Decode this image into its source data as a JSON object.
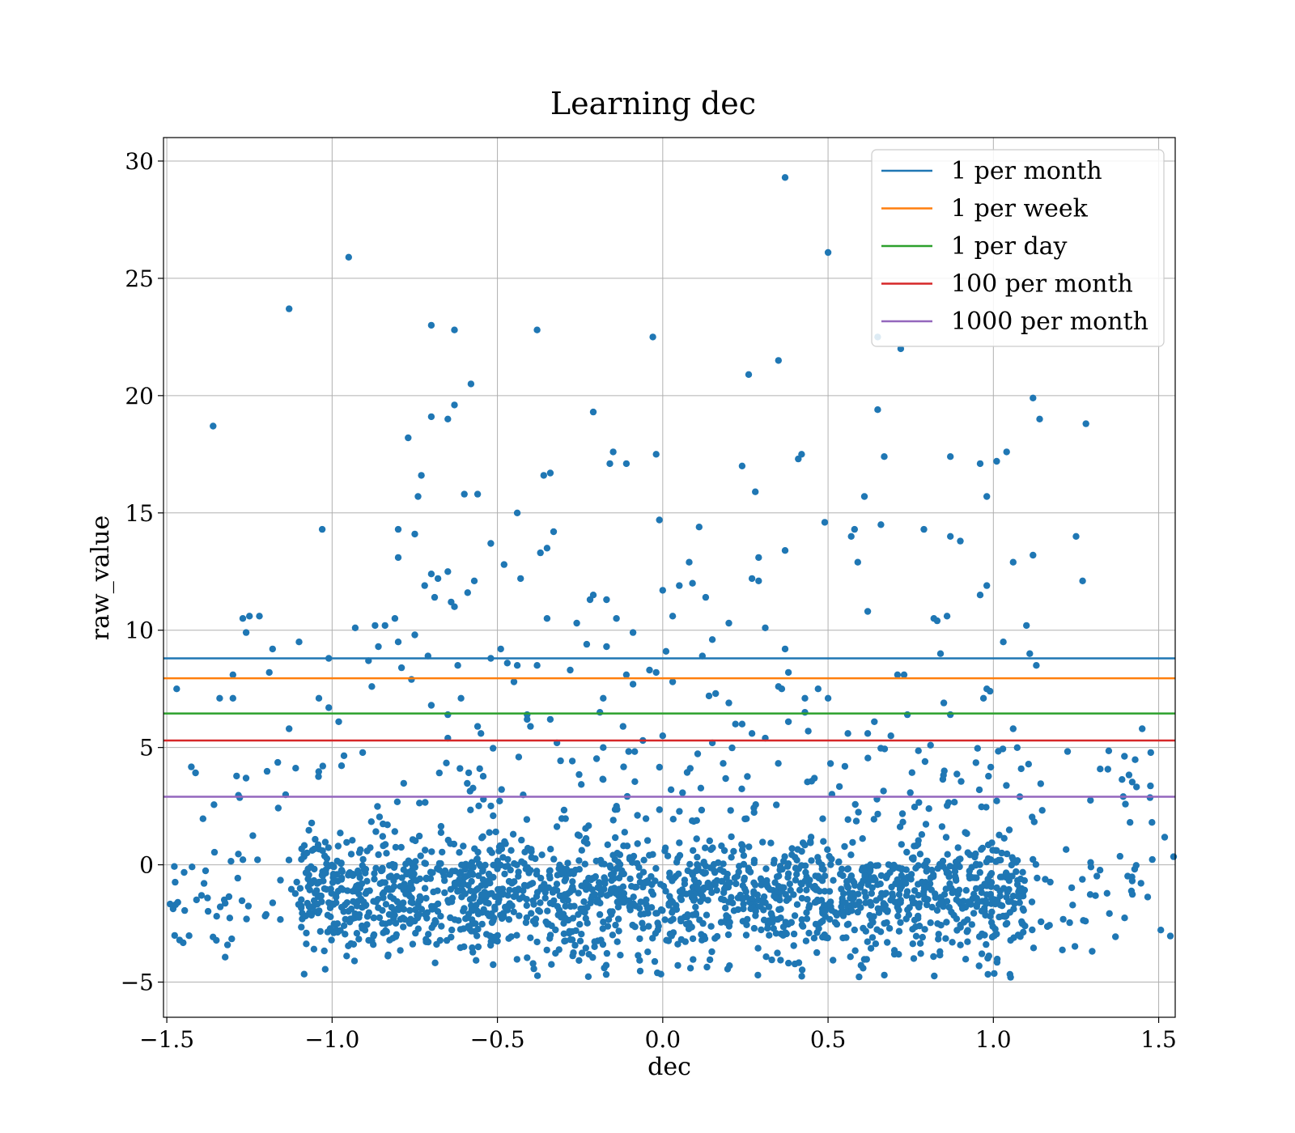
{
  "chart_data": {
    "type": "scatter",
    "title": "Learning dec",
    "xlabel": "dec",
    "ylabel": "raw_value",
    "xlim": [
      -1.51,
      1.55
    ],
    "ylim": [
      -6.5,
      31
    ],
    "xticks": [
      -1.5,
      -1.0,
      -0.5,
      0.0,
      0.5,
      1.0,
      1.5
    ],
    "xtick_labels": [
      "−1.5",
      "−1.0",
      "−0.5",
      "0.0",
      "0.5",
      "1.0",
      "1.5"
    ],
    "yticks": [
      -5,
      0,
      5,
      10,
      15,
      20,
      25,
      30
    ],
    "ytick_labels": [
      "−5",
      "0",
      "5",
      "10",
      "15",
      "20",
      "25",
      "30"
    ],
    "grid": true,
    "legend_position": "top-right",
    "point_color": "#1f77b4",
    "hlines": [
      {
        "name": "1 per month",
        "y": 8.8,
        "color": "#1f77b4"
      },
      {
        "name": "1 per week",
        "y": 7.95,
        "color": "#ff7f0e"
      },
      {
        "name": "1 per day",
        "y": 6.45,
        "color": "#2ca02c"
      },
      {
        "name": "100 per month",
        "y": 5.3,
        "color": "#d62728"
      },
      {
        "name": "1000 per month",
        "y": 2.9,
        "color": "#9467bd"
      }
    ],
    "outliers": [
      [
        0.37,
        29.3
      ],
      [
        -0.95,
        25.9
      ],
      [
        0.5,
        26.1
      ],
      [
        -1.13,
        23.7
      ],
      [
        -0.7,
        23.0
      ],
      [
        -0.63,
        22.8
      ],
      [
        -0.38,
        22.8
      ],
      [
        -0.03,
        22.5
      ],
      [
        0.65,
        22.5
      ],
      [
        0.72,
        22.0
      ],
      [
        0.35,
        21.5
      ],
      [
        0.26,
        20.9
      ],
      [
        -0.58,
        20.5
      ],
      [
        -1.36,
        18.7
      ],
      [
        -0.7,
        19.1
      ],
      [
        -0.65,
        19.0
      ],
      [
        -0.63,
        19.6
      ],
      [
        -0.21,
        19.3
      ],
      [
        0.65,
        19.4
      ],
      [
        1.12,
        19.9
      ],
      [
        1.14,
        19.0
      ],
      [
        1.28,
        18.8
      ],
      [
        -0.77,
        18.2
      ],
      [
        -0.15,
        17.6
      ],
      [
        -0.16,
        17.1
      ],
      [
        -0.11,
        17.1
      ],
      [
        -0.02,
        17.5
      ],
      [
        0.24,
        17.0
      ],
      [
        0.42,
        17.5
      ],
      [
        0.41,
        17.3
      ],
      [
        0.67,
        17.4
      ],
      [
        0.87,
        17.4
      ],
      [
        0.96,
        17.1
      ],
      [
        1.01,
        17.2
      ],
      [
        1.04,
        17.6
      ],
      [
        -0.73,
        16.6
      ],
      [
        -0.36,
        16.6
      ],
      [
        -0.34,
        16.7
      ],
      [
        -0.74,
        15.7
      ],
      [
        -0.6,
        15.8
      ],
      [
        -0.56,
        15.8
      ],
      [
        0.28,
        15.9
      ],
      [
        0.61,
        15.7
      ],
      [
        0.98,
        15.7
      ],
      [
        -1.03,
        14.3
      ],
      [
        -0.8,
        14.3
      ],
      [
        -0.75,
        14.1
      ],
      [
        -0.44,
        15.0
      ],
      [
        -0.33,
        14.2
      ],
      [
        -0.01,
        14.7
      ],
      [
        0.11,
        14.4
      ],
      [
        0.49,
        14.6
      ],
      [
        0.57,
        14.0
      ],
      [
        0.58,
        14.3
      ],
      [
        0.66,
        14.5
      ],
      [
        0.79,
        14.3
      ],
      [
        0.87,
        14.0
      ],
      [
        0.9,
        13.8
      ],
      [
        1.25,
        14.0
      ],
      [
        -0.8,
        13.1
      ],
      [
        -0.52,
        13.7
      ],
      [
        -0.37,
        13.3
      ],
      [
        -0.35,
        13.5
      ],
      [
        0.29,
        13.1
      ],
      [
        0.37,
        13.4
      ],
      [
        1.12,
        13.2
      ],
      [
        -0.48,
        12.8
      ],
      [
        -0.43,
        12.2
      ],
      [
        -0.7,
        12.4
      ],
      [
        -0.68,
        12.2
      ],
      [
        -0.65,
        12.5
      ],
      [
        -0.57,
        12.1
      ],
      [
        0.08,
        12.9
      ],
      [
        0.27,
        12.2
      ],
      [
        0.29,
        12.1
      ],
      [
        0.59,
        12.9
      ],
      [
        1.06,
        12.9
      ],
      [
        1.27,
        12.1
      ],
      [
        -0.72,
        11.9
      ],
      [
        -0.69,
        11.4
      ],
      [
        -0.64,
        11.2
      ],
      [
        -0.63,
        11.0
      ],
      [
        -0.59,
        11.6
      ],
      [
        -0.21,
        11.5
      ],
      [
        -0.22,
        11.3
      ],
      [
        -0.17,
        11.3
      ],
      [
        0.0,
        11.7
      ],
      [
        0.05,
        11.9
      ],
      [
        0.09,
        12.0
      ],
      [
        0.13,
        11.4
      ],
      [
        0.98,
        11.9
      ],
      [
        0.96,
        11.5
      ],
      [
        -1.27,
        10.5
      ],
      [
        -1.25,
        10.6
      ],
      [
        -1.22,
        10.6
      ],
      [
        -1.26,
        9.9
      ],
      [
        -0.93,
        10.1
      ],
      [
        -0.87,
        10.2
      ],
      [
        -0.84,
        10.2
      ],
      [
        -0.81,
        10.5
      ],
      [
        -0.35,
        10.5
      ],
      [
        -0.26,
        10.3
      ],
      [
        -0.14,
        10.5
      ],
      [
        0.03,
        10.6
      ],
      [
        0.2,
        10.3
      ],
      [
        0.31,
        10.1
      ],
      [
        0.62,
        10.8
      ],
      [
        0.82,
        10.5
      ],
      [
        0.83,
        10.4
      ],
      [
        0.86,
        10.6
      ],
      [
        1.1,
        10.2
      ],
      [
        -1.18,
        9.2
      ],
      [
        -1.1,
        9.5
      ],
      [
        -0.86,
        9.3
      ],
      [
        -0.8,
        9.5
      ],
      [
        -0.75,
        9.8
      ],
      [
        -0.49,
        9.2
      ],
      [
        -0.23,
        9.4
      ],
      [
        -0.17,
        9.3
      ],
      [
        -0.09,
        9.9
      ],
      [
        0.01,
        9.1
      ],
      [
        0.15,
        9.6
      ],
      [
        0.37,
        9.2
      ],
      [
        1.03,
        9.5
      ],
      [
        1.11,
        9.0
      ],
      [
        0.84,
        9.0
      ],
      [
        -1.01,
        8.8
      ],
      [
        -0.89,
        8.7
      ],
      [
        -0.71,
        8.9
      ],
      [
        -0.62,
        8.5
      ],
      [
        -0.52,
        8.8
      ],
      [
        -0.47,
        8.6
      ],
      [
        -0.44,
        8.5
      ],
      [
        -0.38,
        8.5
      ],
      [
        -0.28,
        8.3
      ],
      [
        -1.19,
        8.2
      ],
      [
        -0.79,
        8.4
      ],
      [
        -0.04,
        8.3
      ],
      [
        -0.02,
        8.2
      ],
      [
        0.12,
        8.9
      ],
      [
        0.38,
        8.2
      ],
      [
        1.13,
        8.5
      ],
      [
        -1.3,
        8.1
      ],
      [
        -0.88,
        7.6
      ],
      [
        -0.76,
        7.9
      ],
      [
        -0.45,
        7.8
      ],
      [
        -0.11,
        8.1
      ],
      [
        -0.09,
        7.7
      ],
      [
        0.03,
        7.8
      ],
      [
        0.35,
        7.6
      ],
      [
        0.36,
        7.5
      ],
      [
        0.71,
        8.1
      ],
      [
        0.73,
        8.1
      ],
      [
        0.98,
        7.5
      ],
      [
        0.99,
        7.4
      ],
      [
        0.97,
        7.1
      ],
      [
        -1.47,
        7.5
      ],
      [
        -1.34,
        7.1
      ],
      [
        -1.3,
        7.1
      ],
      [
        -1.04,
        7.1
      ],
      [
        -0.7,
        6.8
      ],
      [
        -0.61,
        7.1
      ],
      [
        -0.18,
        7.1
      ],
      [
        0.14,
        7.2
      ],
      [
        0.16,
        7.3
      ],
      [
        0.2,
        6.9
      ],
      [
        0.43,
        7.1
      ],
      [
        0.47,
        7.5
      ],
      [
        0.5,
        7.1
      ],
      [
        -1.01,
        6.7
      ],
      [
        -0.98,
        6.1
      ],
      [
        -0.65,
        6.4
      ],
      [
        -0.41,
        6.4
      ],
      [
        -0.41,
        6.2
      ],
      [
        -0.34,
        6.2
      ],
      [
        -0.19,
        6.5
      ],
      [
        0.22,
        6.0
      ],
      [
        0.24,
        6.0
      ],
      [
        0.38,
        6.1
      ],
      [
        0.43,
        6.5
      ],
      [
        0.64,
        6.1
      ],
      [
        0.74,
        6.4
      ],
      [
        0.85,
        6.9
      ],
      [
        0.87,
        6.4
      ],
      [
        -1.13,
        5.8
      ],
      [
        -0.56,
        5.9
      ],
      [
        -0.55,
        5.6
      ],
      [
        -0.4,
        5.9
      ],
      [
        -0.12,
        5.9
      ],
      [
        0.0,
        5.5
      ],
      [
        0.15,
        5.2
      ],
      [
        0.27,
        5.6
      ],
      [
        0.44,
        5.7
      ],
      [
        0.56,
        5.6
      ],
      [
        0.62,
        5.6
      ],
      [
        0.69,
        5.5
      ],
      [
        1.06,
        5.8
      ],
      [
        1.45,
        5.8
      ],
      [
        -0.65,
        5.4
      ],
      [
        -0.32,
        5.2
      ],
      [
        -0.18,
        5.0
      ],
      [
        -0.06,
        5.3
      ],
      [
        0.31,
        5.4
      ],
      [
        0.81,
        5.1
      ]
    ]
  }
}
